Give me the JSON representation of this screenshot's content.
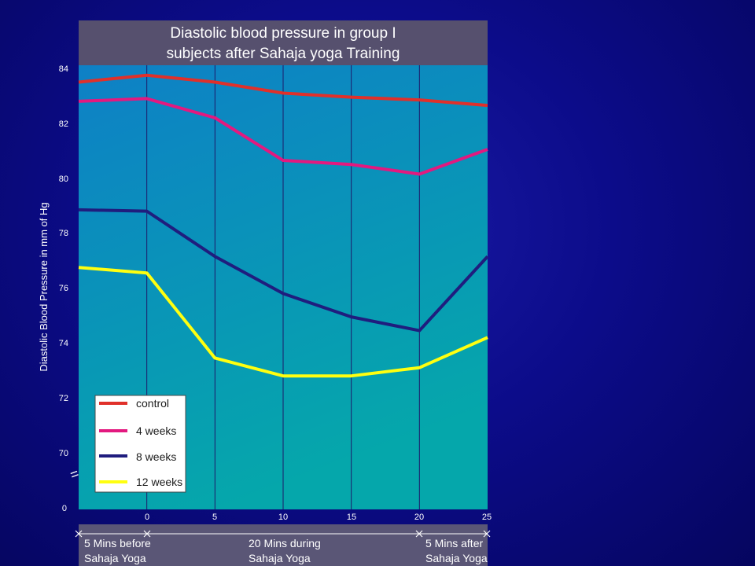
{
  "chart_data": {
    "type": "line",
    "title_lines": [
      "Diastolic blood pressure  in group I",
      "subjects after Sahaja yoga Training"
    ],
    "ylabel": "Diastolic Blood Pressure in mm of Hg",
    "xlabel": "",
    "x": [
      -5,
      0,
      5,
      10,
      15,
      20,
      25
    ],
    "x_tick_labels": [
      "0",
      "5",
      "10",
      "15",
      "20",
      "25"
    ],
    "y_tick_labels": [
      "84",
      "82",
      "80",
      "78",
      "76",
      "74",
      "72",
      "70",
      "0"
    ],
    "ylim": [
      70,
      84
    ],
    "y_axis_break": true,
    "grid": "vertical",
    "series": [
      {
        "name": "control",
        "color": "#e0302a",
        "values": [
          83.5,
          83.75,
          83.5,
          83.1,
          82.95,
          82.85,
          82.65
        ]
      },
      {
        "name": "4 weeks",
        "color": "#e3197f",
        "values": [
          82.8,
          82.9,
          82.2,
          80.65,
          80.5,
          80.15,
          81.05
        ]
      },
      {
        "name": "8 weeks",
        "color": "#1f1d7e",
        "values": [
          78.85,
          78.8,
          77.15,
          75.8,
          74.95,
          74.45,
          77.15
        ]
      },
      {
        "name": "12 weeks",
        "color": "#ffff10",
        "values": [
          76.75,
          76.55,
          73.45,
          72.8,
          72.8,
          73.1,
          74.2
        ]
      }
    ],
    "legend_position": "bottom-left",
    "phases": [
      {
        "label_line1": "5 Mins before",
        "label_line2": "Sahaja Yoga"
      },
      {
        "label_line1": "20 Mins during",
        "label_line2": "Sahaja Yoga"
      },
      {
        "label_line1": "5 Mins after",
        "label_line2": "Sahaja Yoga"
      }
    ],
    "break_symbol": "="
  },
  "colors": {
    "background": "#0c0c8a",
    "title_box": "#56506e",
    "plot_top": "#0e82c6",
    "plot_bottom": "#05a3ad",
    "phase_bar": "#5a5676"
  }
}
